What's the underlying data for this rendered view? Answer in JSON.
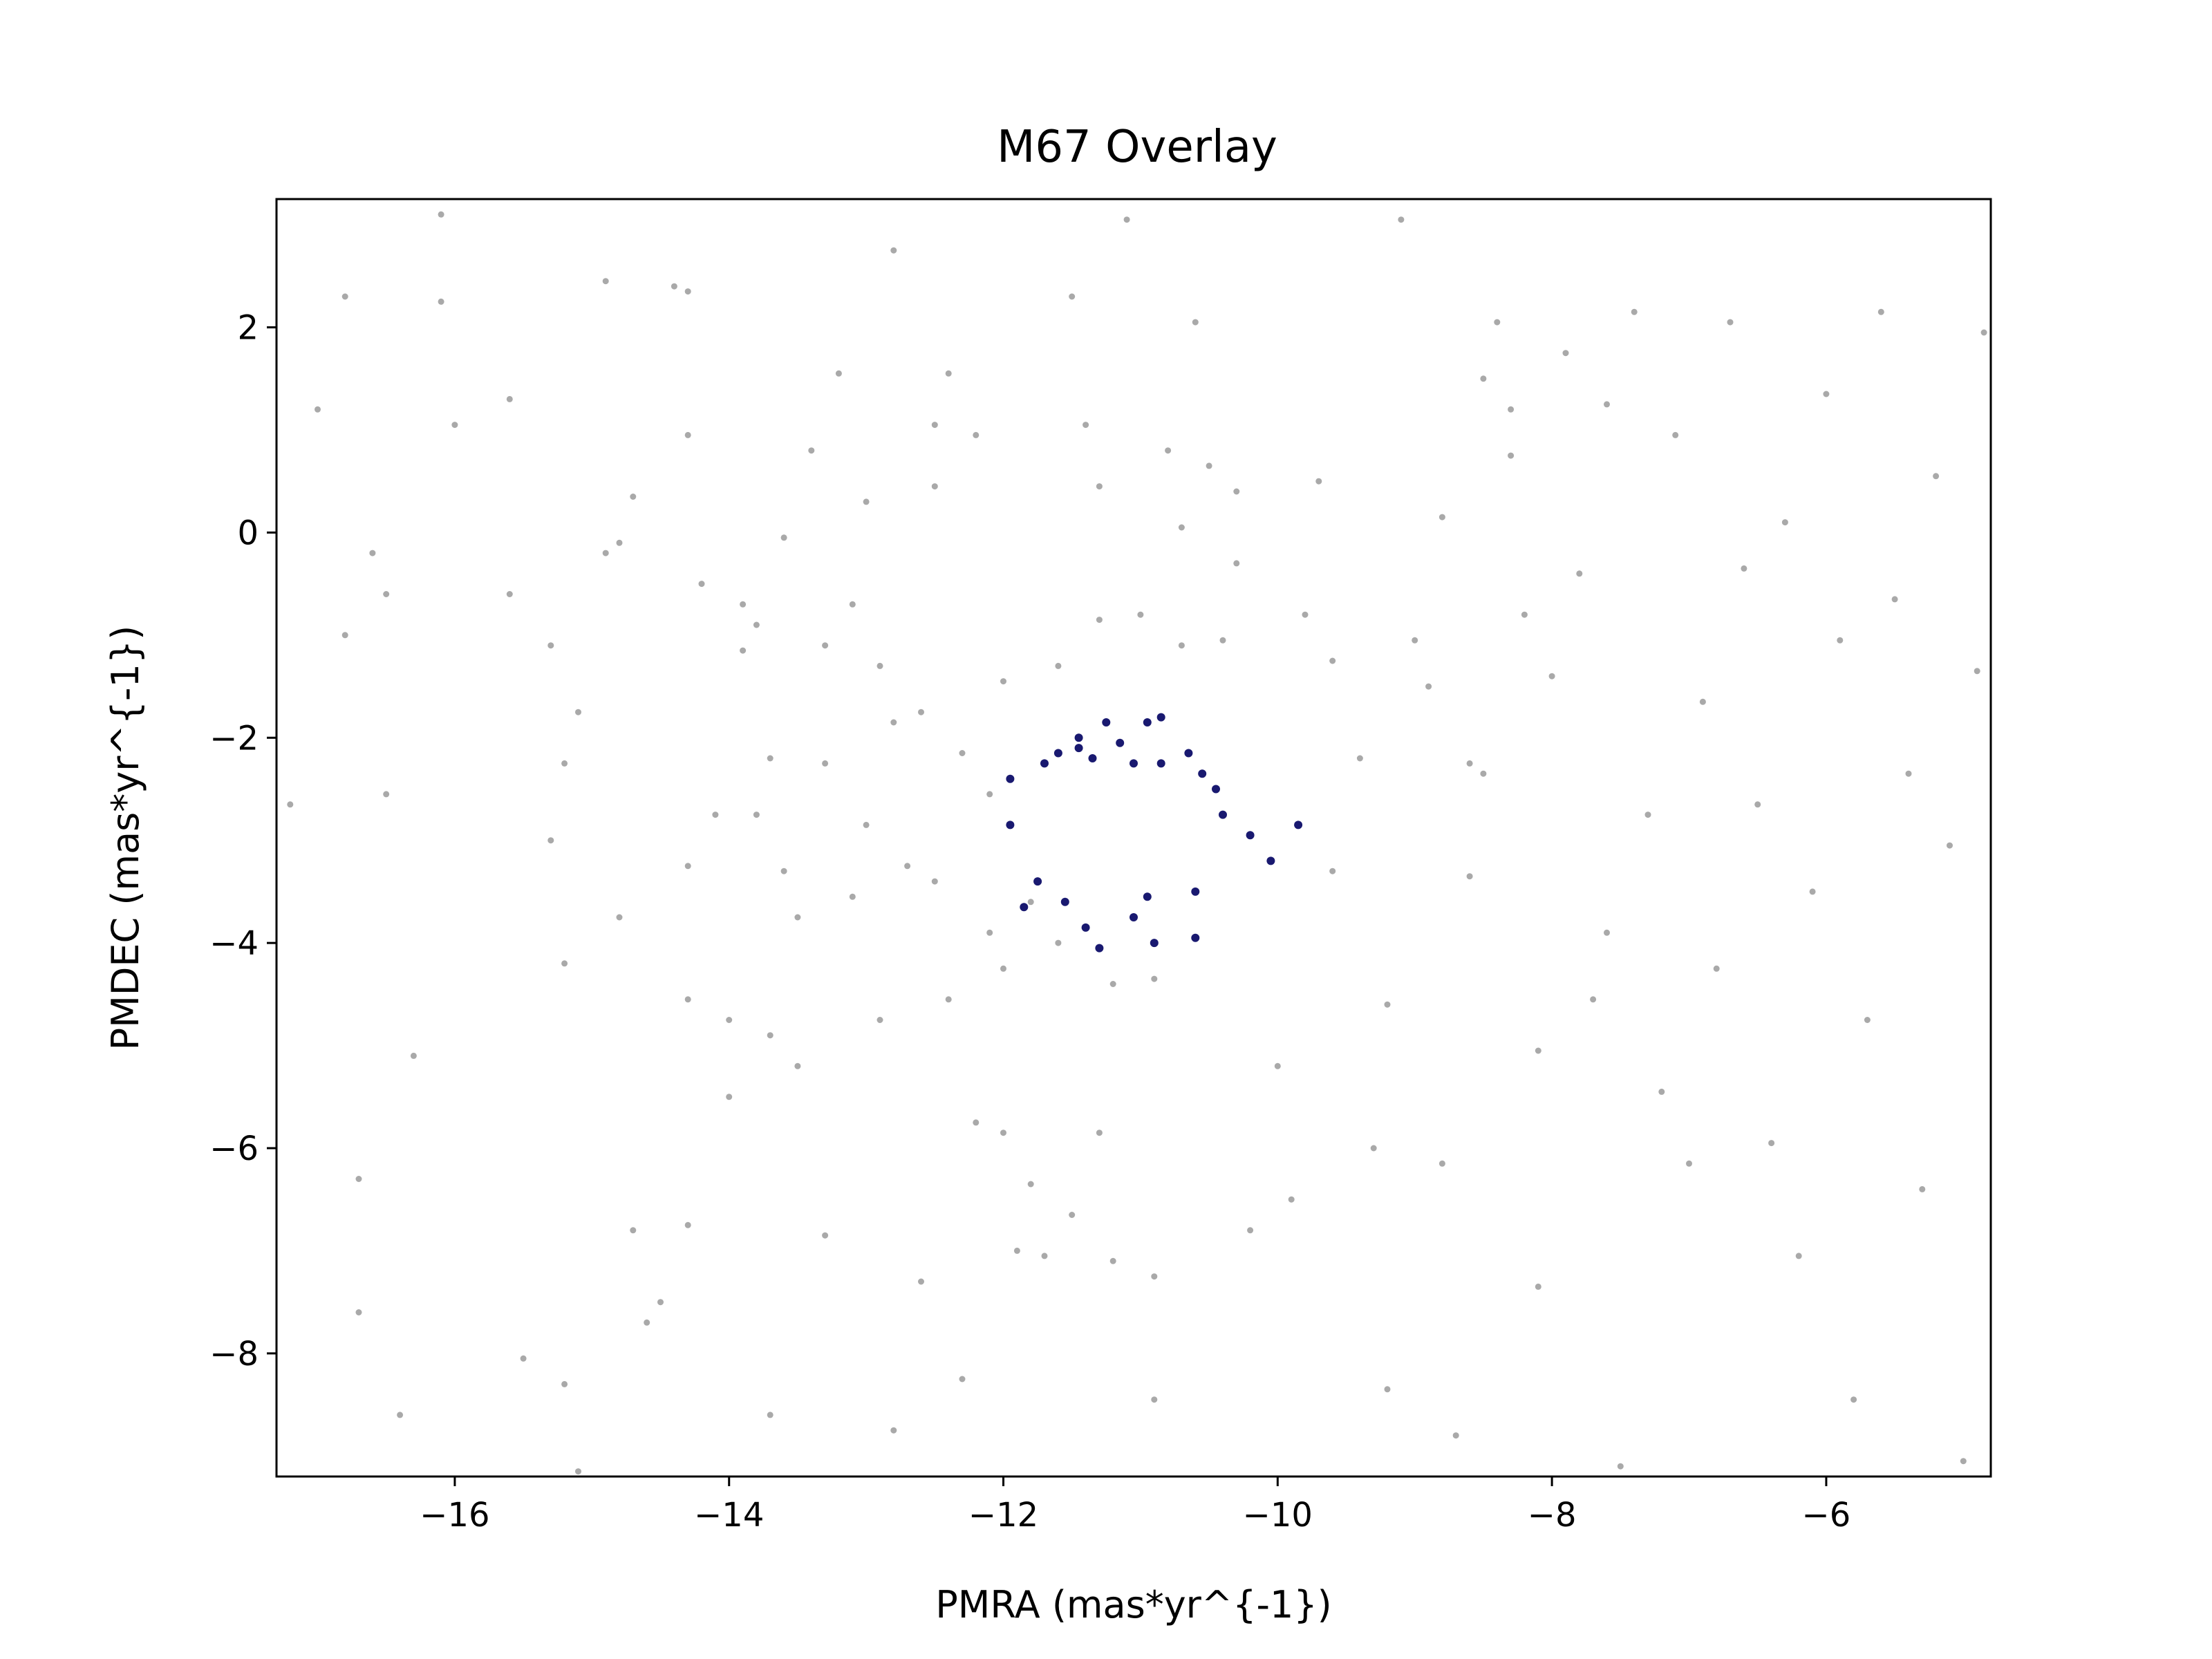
{
  "chart_data": {
    "type": "scatter",
    "title": "M67 Overlay",
    "xlabel": "PMRA (mas*yr^{-1})",
    "ylabel": "PMDEC (mas*yr^{-1})",
    "xlim": [
      -17.3,
      -4.8
    ],
    "ylim": [
      -9.2,
      3.25
    ],
    "xticks": [
      -16,
      -14,
      -12,
      -10,
      -8,
      -6
    ],
    "yticks": [
      -8,
      -6,
      -4,
      -2,
      0,
      2
    ],
    "grid": false,
    "legend": "none",
    "series": [
      {
        "color": "#a9a9a9",
        "points": [
          [
            -17.2,
            -2.65
          ],
          [
            -16.8,
            2.3
          ],
          [
            -17.0,
            1.2
          ],
          [
            -16.6,
            -0.2
          ],
          [
            -16.5,
            -0.6
          ],
          [
            -16.8,
            -1.0
          ],
          [
            -16.5,
            -2.55
          ],
          [
            -16.7,
            -6.3
          ],
          [
            -16.7,
            -7.6
          ],
          [
            -16.4,
            -8.6
          ],
          [
            -16.3,
            -5.1
          ],
          [
            -16.1,
            3.1
          ],
          [
            -16.1,
            2.25
          ],
          [
            -16.0,
            1.05
          ],
          [
            -15.6,
            1.3
          ],
          [
            -15.6,
            -0.6
          ],
          [
            -15.5,
            -8.05
          ],
          [
            -15.3,
            -1.1
          ],
          [
            -15.2,
            -2.25
          ],
          [
            -15.3,
            -3.0
          ],
          [
            -15.2,
            -4.2
          ],
          [
            -15.2,
            -8.3
          ],
          [
            -15.1,
            -1.75
          ],
          [
            -15.1,
            -9.15
          ],
          [
            -14.9,
            2.45
          ],
          [
            -14.8,
            -0.1
          ],
          [
            -14.9,
            -0.2
          ],
          [
            -14.7,
            0.35
          ],
          [
            -14.8,
            -3.75
          ],
          [
            -14.7,
            -6.8
          ],
          [
            -14.6,
            -7.7
          ],
          [
            -14.5,
            -7.5
          ],
          [
            -14.4,
            2.4
          ],
          [
            -14.3,
            2.35
          ],
          [
            -14.3,
            0.95
          ],
          [
            -14.2,
            -0.5
          ],
          [
            -14.3,
            -3.25
          ],
          [
            -14.3,
            -4.55
          ],
          [
            -14.3,
            -6.75
          ],
          [
            -14.1,
            -2.75
          ],
          [
            -14.0,
            -4.75
          ],
          [
            -14.0,
            -5.5
          ],
          [
            -13.9,
            -0.7
          ],
          [
            -13.8,
            -0.9
          ],
          [
            -13.9,
            -1.15
          ],
          [
            -13.8,
            -2.75
          ],
          [
            -13.7,
            -2.2
          ],
          [
            -13.7,
            -4.9
          ],
          [
            -13.6,
            -0.05
          ],
          [
            -13.6,
            -3.3
          ],
          [
            -13.5,
            -3.75
          ],
          [
            -13.5,
            -5.2
          ],
          [
            -13.7,
            -8.6
          ],
          [
            -13.4,
            0.8
          ],
          [
            -13.3,
            -1.1
          ],
          [
            -13.3,
            -2.25
          ],
          [
            -13.3,
            -6.85
          ],
          [
            -13.2,
            1.55
          ],
          [
            -13.1,
            -0.7
          ],
          [
            -13.1,
            -3.55
          ],
          [
            -13.0,
            0.3
          ],
          [
            -13.0,
            -2.85
          ],
          [
            -12.9,
            -1.3
          ],
          [
            -12.9,
            -4.75
          ],
          [
            -12.8,
            2.75
          ],
          [
            -12.8,
            -1.85
          ],
          [
            -12.8,
            -8.75
          ],
          [
            -12.7,
            -3.25
          ],
          [
            -12.6,
            -1.75
          ],
          [
            -12.6,
            -7.3
          ],
          [
            -12.5,
            1.05
          ],
          [
            -12.5,
            0.45
          ],
          [
            -12.4,
            1.55
          ],
          [
            -12.5,
            -3.4
          ],
          [
            -12.4,
            -4.55
          ],
          [
            -12.3,
            -2.15
          ],
          [
            -12.2,
            0.95
          ],
          [
            -12.2,
            -5.75
          ],
          [
            -12.3,
            -8.25
          ],
          [
            -12.1,
            -2.55
          ],
          [
            -12.1,
            -3.9
          ],
          [
            -12.0,
            -1.45
          ],
          [
            -12.0,
            -4.25
          ],
          [
            -12.0,
            -5.85
          ],
          [
            -11.9,
            -7.0
          ],
          [
            -11.8,
            -3.6
          ],
          [
            -11.8,
            -6.35
          ],
          [
            -11.7,
            -7.05
          ],
          [
            -11.6,
            -1.3
          ],
          [
            -11.6,
            -4.0
          ],
          [
            -11.5,
            2.3
          ],
          [
            -11.5,
            -6.65
          ],
          [
            -11.4,
            1.05
          ],
          [
            -11.3,
            0.45
          ],
          [
            -11.3,
            -0.85
          ],
          [
            -11.3,
            -5.85
          ],
          [
            -11.2,
            -4.4
          ],
          [
            -11.2,
            -7.1
          ],
          [
            -11.1,
            3.05
          ],
          [
            -11.0,
            -0.8
          ],
          [
            -10.9,
            -4.35
          ],
          [
            -10.9,
            -7.25
          ],
          [
            -10.9,
            -8.45
          ],
          [
            -10.8,
            0.8
          ],
          [
            -10.7,
            0.05
          ],
          [
            -10.7,
            -1.1
          ],
          [
            -10.6,
            2.05
          ],
          [
            -10.5,
            0.65
          ],
          [
            -10.4,
            -1.05
          ],
          [
            -10.3,
            0.4
          ],
          [
            -10.3,
            -0.3
          ],
          [
            -10.2,
            -6.8
          ],
          [
            -10.0,
            -5.2
          ],
          [
            -9.9,
            -6.5
          ],
          [
            -9.8,
            -0.8
          ],
          [
            -9.7,
            0.5
          ],
          [
            -9.6,
            -1.25
          ],
          [
            -9.6,
            -3.3
          ],
          [
            -9.4,
            -2.2
          ],
          [
            -9.3,
            -6.0
          ],
          [
            -9.2,
            -4.6
          ],
          [
            -9.2,
            -8.35
          ],
          [
            -9.1,
            3.05
          ],
          [
            -9.0,
            -1.05
          ],
          [
            -8.9,
            -1.5
          ],
          [
            -8.8,
            0.15
          ],
          [
            -8.8,
            -6.15
          ],
          [
            -8.7,
            -8.8
          ],
          [
            -8.6,
            -3.35
          ],
          [
            -8.6,
            -2.25
          ],
          [
            -8.5,
            -2.35
          ],
          [
            -8.5,
            1.5
          ],
          [
            -8.4,
            2.05
          ],
          [
            -8.3,
            1.2
          ],
          [
            -8.3,
            0.75
          ],
          [
            -8.2,
            -0.8
          ],
          [
            -8.1,
            -5.05
          ],
          [
            -8.1,
            -7.35
          ],
          [
            -8.0,
            -1.4
          ],
          [
            -7.9,
            1.75
          ],
          [
            -7.8,
            -0.4
          ],
          [
            -7.7,
            -4.55
          ],
          [
            -7.6,
            1.25
          ],
          [
            -7.6,
            -3.9
          ],
          [
            -7.5,
            -9.1
          ],
          [
            -7.4,
            2.15
          ],
          [
            -7.3,
            -2.75
          ],
          [
            -7.2,
            -5.45
          ],
          [
            -7.1,
            0.95
          ],
          [
            -7.0,
            -6.15
          ],
          [
            -6.9,
            -1.65
          ],
          [
            -6.8,
            -4.25
          ],
          [
            -6.7,
            2.05
          ],
          [
            -6.6,
            -0.35
          ],
          [
            -6.5,
            -2.65
          ],
          [
            -6.4,
            -5.95
          ],
          [
            -6.3,
            0.1
          ],
          [
            -6.2,
            -7.05
          ],
          [
            -6.1,
            -3.5
          ],
          [
            -6.0,
            1.35
          ],
          [
            -5.9,
            -1.05
          ],
          [
            -5.8,
            -8.45
          ],
          [
            -5.7,
            -4.75
          ],
          [
            -5.6,
            2.15
          ],
          [
            -5.5,
            -0.65
          ],
          [
            -5.4,
            -2.35
          ],
          [
            -5.3,
            -6.4
          ],
          [
            -5.2,
            0.55
          ],
          [
            -5.1,
            -3.05
          ],
          [
            -5.0,
            -9.05
          ],
          [
            -4.9,
            -1.35
          ],
          [
            -4.85,
            1.95
          ]
        ]
      },
      {
        "color": "#191970",
        "points": [
          [
            -11.95,
            -2.4
          ],
          [
            -11.7,
            -2.25
          ],
          [
            -11.6,
            -2.15
          ],
          [
            -11.45,
            -2.1
          ],
          [
            -11.35,
            -2.2
          ],
          [
            -11.15,
            -2.05
          ],
          [
            -11.05,
            -2.25
          ],
          [
            -10.95,
            -1.85
          ],
          [
            -10.85,
            -2.25
          ],
          [
            -10.65,
            -2.15
          ],
          [
            -10.55,
            -2.35
          ],
          [
            -10.45,
            -2.5
          ],
          [
            -11.45,
            -2.0
          ],
          [
            -11.25,
            -1.85
          ],
          [
            -10.85,
            -1.8
          ],
          [
            -10.4,
            -2.75
          ],
          [
            -10.2,
            -2.95
          ],
          [
            -10.05,
            -3.2
          ],
          [
            -9.85,
            -2.85
          ],
          [
            -10.6,
            -3.5
          ],
          [
            -11.95,
            -2.85
          ],
          [
            -11.75,
            -3.4
          ],
          [
            -11.85,
            -3.65
          ],
          [
            -11.55,
            -3.6
          ],
          [
            -11.4,
            -3.85
          ],
          [
            -11.3,
            -4.05
          ],
          [
            -11.05,
            -3.75
          ],
          [
            -10.9,
            -4.0
          ],
          [
            -10.6,
            -3.95
          ],
          [
            -10.95,
            -3.55
          ]
        ]
      }
    ]
  }
}
